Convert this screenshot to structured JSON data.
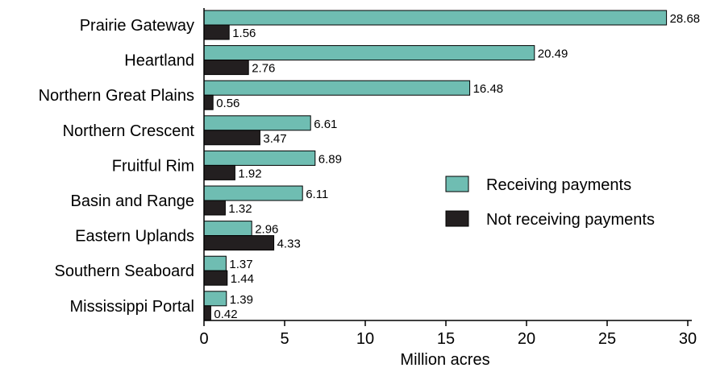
{
  "chart_data": {
    "type": "bar",
    "orientation": "horizontal",
    "title": "",
    "xlabel": "Million acres",
    "ylabel": "",
    "xlim": [
      0,
      30
    ],
    "xticks": [
      0,
      5,
      10,
      15,
      20,
      25,
      30
    ],
    "grid": false,
    "legend_position": "center-right",
    "categories": [
      "Prairie Gateway",
      "Heartland",
      "Northern Great Plains",
      "Northern Crescent",
      "Fruitful Rim",
      "Basin and Range",
      "Eastern Uplands",
      "Southern Seaboard",
      "Mississippi Portal"
    ],
    "series": [
      {
        "name": "Receiving payments",
        "color": "#6fbdb2",
        "values": [
          28.68,
          20.49,
          16.48,
          6.61,
          6.89,
          6.11,
          2.96,
          1.37,
          1.39
        ],
        "labels": [
          "28.68",
          "20.49",
          "16.48",
          "6.61",
          "6.89",
          "6.11",
          "2.96",
          "1.37",
          "1.39"
        ]
      },
      {
        "name": "Not receiving payments",
        "color": "#231f20",
        "values": [
          1.56,
          2.76,
          0.56,
          3.47,
          1.92,
          1.32,
          4.33,
          1.44,
          0.42
        ],
        "labels": [
          "1.56",
          "2.76",
          "0.56",
          "3.47",
          "1.92",
          "1.32",
          "4.33",
          "1.44",
          "0.42"
        ]
      }
    ]
  }
}
